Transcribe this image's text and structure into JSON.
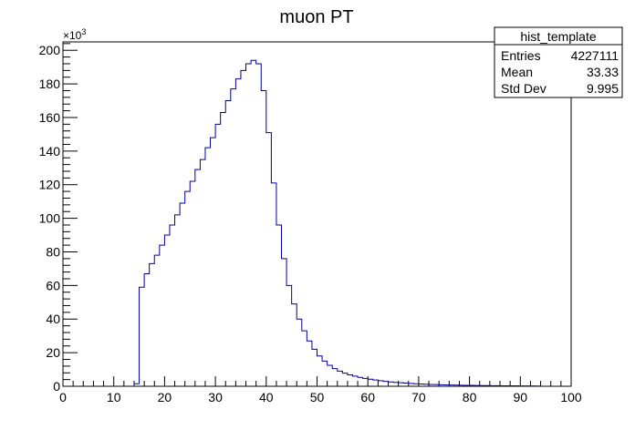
{
  "chart_data": {
    "type": "histogram",
    "title": "muon PT",
    "xlabel": "",
    "ylabel": "",
    "xlim": [
      0,
      100
    ],
    "ylim": [
      0,
      205000
    ],
    "y_multiplier_label": "×10³",
    "x_ticks": [
      0,
      10,
      20,
      30,
      40,
      50,
      60,
      70,
      80,
      90,
      100
    ],
    "y_ticks": [
      0,
      20,
      40,
      60,
      80,
      100,
      120,
      140,
      160,
      180,
      200
    ],
    "grid": false,
    "legend": "none",
    "bin_width": 1,
    "bins": {
      "x_low": [
        14,
        15,
        16,
        17,
        18,
        19,
        20,
        21,
        22,
        23,
        24,
        25,
        26,
        27,
        28,
        29,
        30,
        31,
        32,
        33,
        34,
        35,
        36,
        37,
        38,
        39,
        40,
        41,
        42,
        43,
        44,
        45,
        46,
        47,
        48,
        49,
        50,
        51,
        52,
        53,
        54,
        55,
        56,
        57,
        58,
        59,
        60,
        61,
        62,
        63,
        64,
        65,
        66,
        67,
        68,
        69,
        70,
        71,
        72,
        73,
        74,
        75,
        76,
        77,
        78,
        79,
        80,
        81,
        82,
        83,
        84,
        85,
        86,
        87,
        88,
        89,
        90,
        91,
        92,
        93
      ],
      "counts": [
        1500,
        59000,
        67000,
        73000,
        78000,
        84000,
        90000,
        96000,
        102000,
        109000,
        116000,
        122000,
        129000,
        135000,
        142000,
        148000,
        156000,
        163000,
        170000,
        177000,
        183000,
        188000,
        192000,
        194000,
        192000,
        176000,
        151000,
        121000,
        96000,
        76000,
        60000,
        49000,
        40000,
        33000,
        27000,
        22000,
        18000,
        15000,
        12500,
        10500,
        9000,
        7800,
        6800,
        6000,
        5300,
        4700,
        4200,
        3700,
        3300,
        2900,
        2600,
        2300,
        2100,
        1900,
        1700,
        1500,
        1350,
        1200,
        1100,
        1000,
        900,
        820,
        750,
        680,
        620,
        560,
        510,
        470,
        430,
        390,
        360,
        330,
        300,
        280,
        260,
        240,
        220,
        200,
        180,
        160
      ]
    },
    "series_color": "#000099"
  },
  "stats": {
    "name": "hist_template",
    "rows": [
      {
        "label": "Entries",
        "value": "4227111"
      },
      {
        "label": "Mean",
        "value": "33.33"
      },
      {
        "label": "Std Dev",
        "value": "9.995"
      }
    ]
  }
}
